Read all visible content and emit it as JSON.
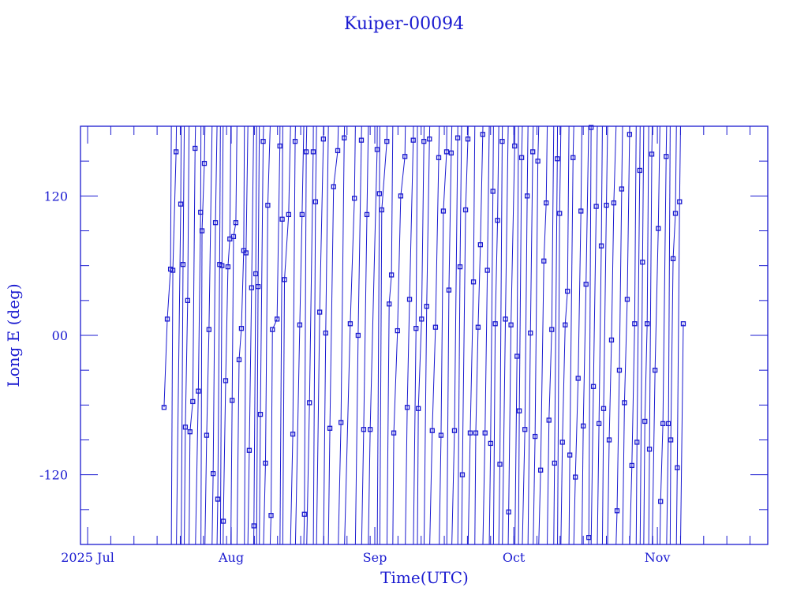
{
  "chart_data": {
    "type": "line",
    "title": "Kuiper-00094",
    "xlabel": "Time(UTC)",
    "ylabel": "Long E (deg)",
    "xlim": [
      "2025-06-29T11:00:00Z",
      "2025-11-24T20:00:00Z"
    ],
    "ylim": [
      -180,
      180
    ],
    "yticks": [
      {
        "value": 120,
        "label": "120"
      },
      {
        "value": 0,
        "label": "00"
      },
      {
        "value": -120,
        "label": "-120"
      }
    ],
    "yminor_step": 30,
    "xticks": [
      {
        "date": "2025-07-01",
        "label": "2025 Jul"
      },
      {
        "date": "2025-08-01",
        "label": "Aug"
      },
      {
        "date": "2025-09-01",
        "label": "Sep"
      },
      {
        "date": "2025-10-01",
        "label": "Oct"
      },
      {
        "date": "2025-11-01",
        "label": "Nov"
      }
    ],
    "xminor_step_days": 5,
    "grid": false,
    "line_color": "#1a1ad0",
    "marker": "square",
    "series_by_month": [
      {
        "month": "2025-07",
        "points": [
          [
            17.5,
            -62
          ],
          [
            18.2,
            14
          ],
          [
            18.9,
            57
          ],
          [
            19.4,
            56
          ],
          [
            20.1,
            158
          ],
          [
            21.1,
            113
          ],
          [
            21.6,
            61
          ],
          [
            22.1,
            -79
          ],
          [
            22.6,
            30
          ],
          [
            23.1,
            -83
          ],
          [
            23.7,
            -57
          ],
          [
            24.2,
            161
          ],
          [
            24.9,
            -48
          ],
          [
            25.4,
            106
          ],
          [
            25.7,
            90
          ],
          [
            26.2,
            148
          ],
          [
            26.7,
            -86
          ],
          [
            27.2,
            5
          ],
          [
            28.1,
            -119
          ],
          [
            28.6,
            97
          ],
          [
            29.1,
            -141
          ],
          [
            29.5,
            61
          ],
          [
            30.0,
            60
          ],
          [
            30.3,
            -160
          ],
          [
            30.8,
            -39
          ],
          [
            31.3,
            59
          ],
          [
            31.7,
            83
          ]
        ]
      },
      {
        "month": "2025-08",
        "points": [
          [
            1.2,
            -56
          ],
          [
            1.5,
            85
          ],
          [
            2.0,
            97
          ],
          [
            2.7,
            -21
          ],
          [
            3.2,
            6
          ],
          [
            3.7,
            73
          ],
          [
            4.2,
            71
          ],
          [
            4.9,
            -99
          ],
          [
            5.4,
            41
          ],
          [
            5.9,
            -164
          ],
          [
            6.3,
            53
          ],
          [
            6.8,
            42
          ],
          [
            7.3,
            -68
          ],
          [
            7.9,
            167
          ],
          [
            8.4,
            -110
          ],
          [
            8.9,
            112
          ],
          [
            9.6,
            -155
          ],
          [
            9.9,
            5
          ],
          [
            10.9,
            14
          ],
          [
            11.5,
            163
          ],
          [
            12.0,
            100
          ],
          [
            12.5,
            48
          ],
          [
            13.4,
            104
          ],
          [
            14.3,
            -85
          ],
          [
            14.8,
            167
          ],
          [
            15.8,
            9
          ],
          [
            16.3,
            104
          ],
          [
            16.8,
            -154
          ],
          [
            17.2,
            158
          ],
          [
            17.9,
            -58
          ],
          [
            18.7,
            158
          ],
          [
            19.2,
            115
          ],
          [
            20.1,
            20
          ],
          [
            20.9,
            169
          ],
          [
            21.4,
            2
          ],
          [
            22.3,
            -80
          ],
          [
            23.1,
            128
          ],
          [
            24.0,
            159
          ],
          [
            24.7,
            -75
          ],
          [
            25.4,
            170
          ],
          [
            26.7,
            10
          ],
          [
            27.6,
            118
          ],
          [
            28.4,
            0
          ],
          [
            29.1,
            168
          ],
          [
            29.6,
            -81
          ],
          [
            30.3,
            104
          ],
          [
            31.0,
            -81
          ]
        ]
      },
      {
        "month": "2025-09",
        "points": [
          [
            1.5,
            160
          ],
          [
            2.0,
            122
          ],
          [
            2.5,
            108
          ],
          [
            3.6,
            167
          ],
          [
            4.1,
            27
          ],
          [
            4.6,
            52
          ],
          [
            5.1,
            -84
          ],
          [
            5.9,
            4
          ],
          [
            6.6,
            120
          ],
          [
            7.5,
            154
          ],
          [
            8.0,
            -62
          ],
          [
            8.5,
            31
          ],
          [
            9.3,
            168
          ],
          [
            9.9,
            6
          ],
          [
            10.4,
            -63
          ],
          [
            11.1,
            14
          ],
          [
            11.6,
            167
          ],
          [
            12.2,
            25
          ],
          [
            12.8,
            169
          ],
          [
            13.4,
            -82
          ],
          [
            14.1,
            7
          ],
          [
            14.8,
            153
          ],
          [
            15.3,
            -86
          ],
          [
            15.8,
            107
          ],
          [
            16.5,
            158
          ],
          [
            17.0,
            39
          ],
          [
            17.5,
            157
          ],
          [
            18.2,
            -82
          ],
          [
            18.9,
            170
          ],
          [
            19.4,
            59
          ],
          [
            19.9,
            -120
          ],
          [
            20.6,
            108
          ],
          [
            21.1,
            169
          ],
          [
            21.6,
            -84
          ],
          [
            22.3,
            46
          ],
          [
            22.8,
            -84
          ],
          [
            23.3,
            7
          ],
          [
            23.8,
            78
          ],
          [
            24.3,
            173
          ],
          [
            24.8,
            -84
          ],
          [
            25.3,
            56
          ],
          [
            26.0,
            -93
          ],
          [
            26.5,
            124
          ],
          [
            27.0,
            10
          ],
          [
            27.5,
            99
          ],
          [
            28.0,
            -111
          ],
          [
            28.5,
            167
          ],
          [
            29.2,
            14
          ],
          [
            29.9,
            -152
          ],
          [
            30.4,
            9
          ]
        ]
      },
      {
        "month": "2025-10",
        "points": [
          [
            1.2,
            163
          ],
          [
            1.7,
            -18
          ],
          [
            2.2,
            -65
          ],
          [
            2.7,
            153
          ],
          [
            3.4,
            -81
          ],
          [
            3.9,
            120
          ],
          [
            4.6,
            2
          ],
          [
            5.1,
            158
          ],
          [
            5.6,
            -87
          ],
          [
            6.2,
            150
          ],
          [
            6.8,
            -116
          ],
          [
            7.5,
            64
          ],
          [
            8.0,
            114
          ],
          [
            8.6,
            -73
          ],
          [
            9.2,
            5
          ],
          [
            9.8,
            -110
          ],
          [
            10.4,
            152
          ],
          [
            10.9,
            105
          ],
          [
            11.5,
            -92
          ],
          [
            12.1,
            9
          ],
          [
            12.6,
            38
          ],
          [
            13.1,
            -103
          ],
          [
            13.8,
            153
          ],
          [
            14.3,
            -122
          ],
          [
            14.9,
            -37
          ],
          [
            15.5,
            107
          ],
          [
            16.0,
            -78
          ],
          [
            16.6,
            44
          ],
          [
            17.2,
            -174
          ],
          [
            17.7,
            179
          ],
          [
            18.2,
            -44
          ],
          [
            18.8,
            111
          ],
          [
            19.4,
            -76
          ],
          [
            19.9,
            77
          ],
          [
            20.4,
            -63
          ],
          [
            21.0,
            112
          ],
          [
            21.6,
            -90
          ],
          [
            22.1,
            -4
          ],
          [
            22.6,
            114
          ],
          [
            23.3,
            -151
          ],
          [
            23.8,
            -30
          ],
          [
            24.3,
            126
          ],
          [
            24.9,
            -58
          ],
          [
            25.5,
            31
          ],
          [
            26.0,
            173
          ],
          [
            26.5,
            -112
          ],
          [
            27.1,
            10
          ],
          [
            27.6,
            -92
          ],
          [
            28.2,
            142
          ],
          [
            28.8,
            63
          ],
          [
            29.3,
            -74
          ],
          [
            29.8,
            10
          ],
          [
            30.3,
            -98
          ],
          [
            30.8,
            156
          ],
          [
            31.5,
            -30
          ]
        ]
      },
      {
        "month": "2025-11",
        "points": [
          [
            1.2,
            92
          ],
          [
            1.7,
            -143
          ],
          [
            2.2,
            -76
          ],
          [
            2.9,
            154
          ],
          [
            3.4,
            -76
          ],
          [
            3.9,
            -90
          ],
          [
            4.4,
            66
          ],
          [
            4.9,
            105
          ],
          [
            5.3,
            -114
          ],
          [
            5.8,
            115
          ],
          [
            6.6,
            10
          ]
        ]
      }
    ]
  }
}
